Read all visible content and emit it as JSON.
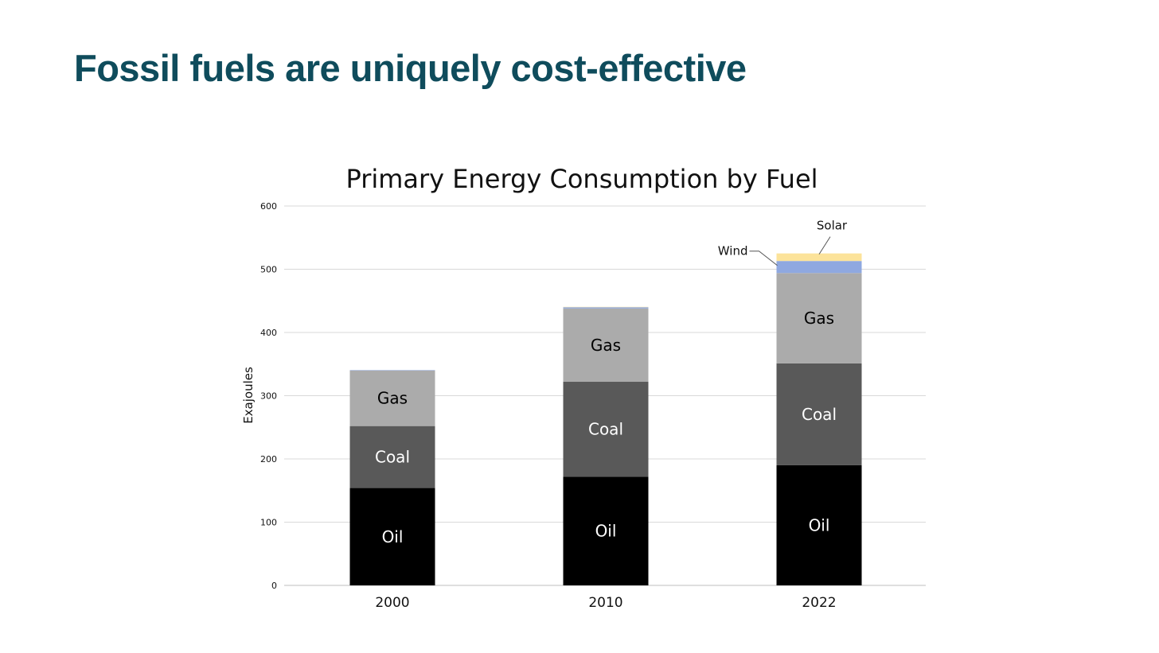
{
  "slide": {
    "title": "Fossil fuels are uniquely cost-effective"
  },
  "chart_data": {
    "type": "bar",
    "stacked": true,
    "title": "Primary Energy Consumption by Fuel",
    "xlabel": "",
    "ylabel": "Exajoules",
    "ylim": [
      0,
      600
    ],
    "yticks": [
      0,
      100,
      200,
      300,
      400,
      500,
      600
    ],
    "grid": true,
    "categories": [
      "2000",
      "2010",
      "2022"
    ],
    "series": [
      {
        "name": "Oil",
        "color": "#000000",
        "label_color": "#ffffff",
        "values": [
          154,
          172,
          190
        ]
      },
      {
        "name": "Coal",
        "color": "#595959",
        "label_color": "#ffffff",
        "values": [
          98,
          150,
          161
        ]
      },
      {
        "name": "Gas",
        "color": "#ababab",
        "label_color": "#000000",
        "values": [
          88,
          116,
          143
        ]
      },
      {
        "name": "Wind",
        "color": "#8fa8e0",
        "label_color": "#000000",
        "values": [
          0.5,
          2,
          19
        ]
      },
      {
        "name": "Solar",
        "color": "#fce39a",
        "label_color": "#000000",
        "values": [
          0,
          0.5,
          12
        ]
      }
    ],
    "annotations": [
      {
        "text": "Wind",
        "category": "2022",
        "series": "Wind"
      },
      {
        "text": "Solar",
        "category": "2022",
        "series": "Solar"
      }
    ]
  }
}
